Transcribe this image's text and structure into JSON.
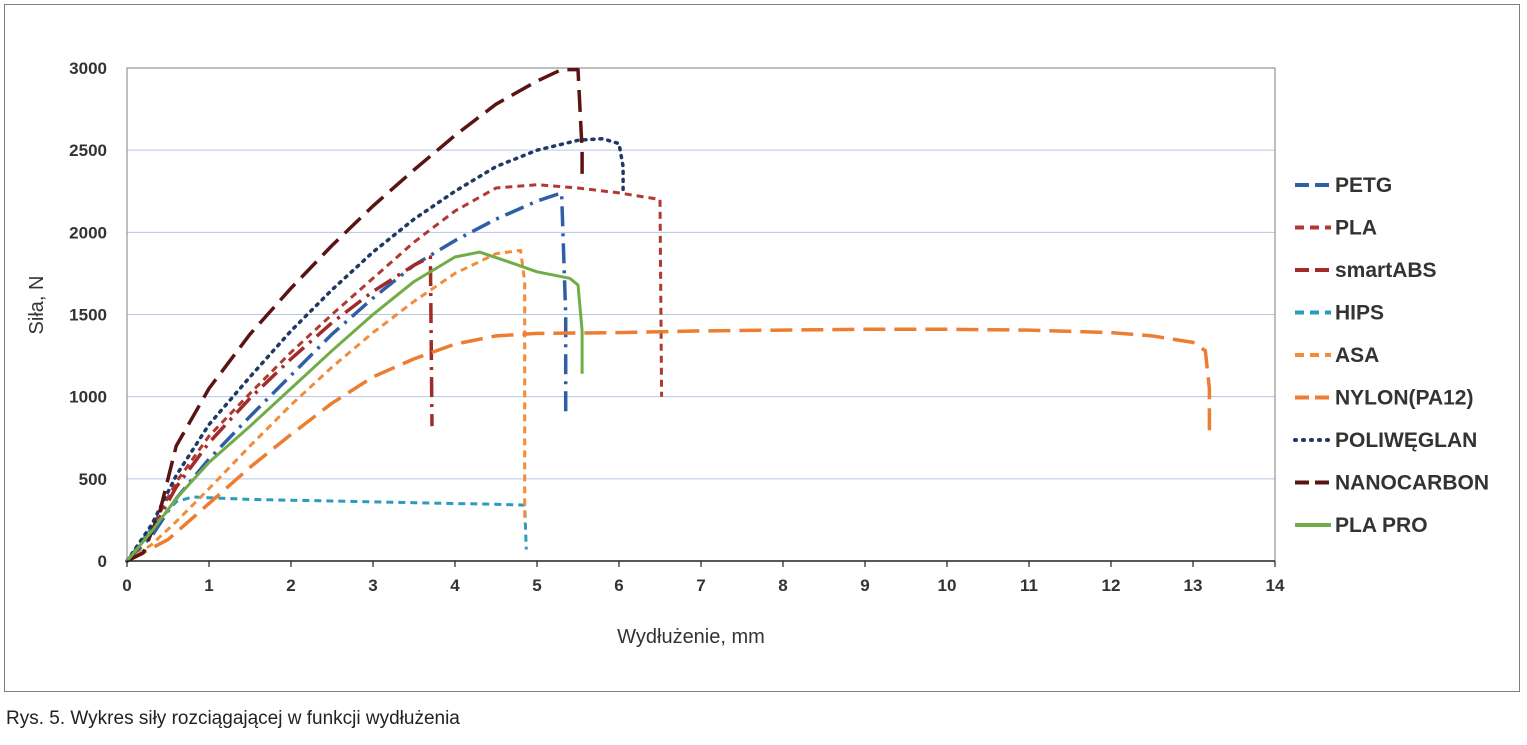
{
  "caption": "Rys. 5. Wykres siły rozciągającej w funkcji wydłużenia",
  "chart_data": {
    "type": "line",
    "title": "",
    "xlabel": "Wydłużenie, mm",
    "ylabel": "Siła, N",
    "xlim": [
      0,
      14
    ],
    "ylim": [
      0,
      3000
    ],
    "x_ticks": [
      "0",
      "1",
      "2",
      "3",
      "4",
      "5",
      "6",
      "7",
      "8",
      "9",
      "10",
      "11",
      "12",
      "13",
      "14"
    ],
    "y_ticks": [
      "0",
      "500",
      "1000",
      "1500",
      "2000",
      "2500",
      "3000"
    ],
    "grid": "horizontal",
    "legend_position": "right",
    "series": [
      {
        "name": "PETG",
        "color": "#2e5fa6",
        "dash": "dashdot",
        "x": [
          0,
          0.3,
          0.6,
          1.0,
          1.5,
          2.0,
          2.5,
          3.0,
          3.5,
          4.0,
          4.5,
          5.0,
          5.3,
          5.35,
          5.35
        ],
        "y": [
          0,
          150,
          380,
          620,
          880,
          1130,
          1380,
          1600,
          1800,
          1950,
          2080,
          2190,
          2240,
          1500,
          880
        ]
      },
      {
        "name": "PLA",
        "color": "#b03a32",
        "dash": "dash",
        "x": [
          0,
          0.3,
          0.6,
          1.0,
          1.5,
          2.0,
          2.5,
          3.0,
          3.5,
          4.0,
          4.5,
          5.0,
          5.5,
          6.0,
          6.5,
          6.52
        ],
        "y": [
          0,
          200,
          480,
          760,
          1020,
          1270,
          1500,
          1720,
          1940,
          2130,
          2270,
          2290,
          2270,
          2240,
          2200,
          1000
        ]
      },
      {
        "name": "smartABS",
        "color": "#a32a2a",
        "dash": "dashdot",
        "x": [
          0,
          0.3,
          0.6,
          1.0,
          1.5,
          2.0,
          2.5,
          3.0,
          3.5,
          3.7,
          3.72
        ],
        "y": [
          0,
          180,
          450,
          720,
          990,
          1230,
          1450,
          1640,
          1800,
          1850,
          820
        ]
      },
      {
        "name": "HIPS",
        "color": "#2e9abf",
        "dash": "dash",
        "x": [
          0,
          0.3,
          0.6,
          0.8,
          1.0,
          1.5,
          2.0,
          2.5,
          3.0,
          3.5,
          4.0,
          4.5,
          4.85,
          4.87
        ],
        "y": [
          0,
          200,
          360,
          390,
          385,
          375,
          370,
          365,
          360,
          355,
          350,
          345,
          340,
          70
        ]
      },
      {
        "name": "ASA",
        "color": "#f28c3a",
        "dash": "dash",
        "x": [
          0,
          0.3,
          0.6,
          1.0,
          1.5,
          2.0,
          2.5,
          3.0,
          3.5,
          4.0,
          4.5,
          4.8,
          4.85,
          4.85
        ],
        "y": [
          0,
          100,
          240,
          440,
          700,
          950,
          1180,
          1390,
          1580,
          1750,
          1870,
          1890,
          1700,
          230
        ]
      },
      {
        "name": "NYLON(PA12)",
        "color": "#ed7d31",
        "dash": "longdash",
        "x": [
          0,
          0.5,
          1.0,
          1.5,
          2.0,
          2.5,
          3.0,
          3.5,
          4.0,
          4.5,
          5.0,
          6.0,
          7.0,
          8.0,
          9.0,
          10.0,
          11.0,
          12.0,
          12.5,
          13.0,
          13.15,
          13.2,
          13.2
        ],
        "y": [
          0,
          130,
          350,
          570,
          770,
          960,
          1120,
          1230,
          1320,
          1370,
          1385,
          1390,
          1400,
          1405,
          1410,
          1410,
          1405,
          1390,
          1370,
          1330,
          1280,
          1050,
          780
        ]
      },
      {
        "name": "POLIWĘGLAN",
        "color": "#1f3864",
        "dash": "dot",
        "x": [
          0,
          0.3,
          0.6,
          1.0,
          1.5,
          2.0,
          2.5,
          3.0,
          3.5,
          4.0,
          4.5,
          5.0,
          5.5,
          5.8,
          6.0,
          6.05,
          6.05
        ],
        "y": [
          0,
          220,
          520,
          830,
          1120,
          1400,
          1650,
          1880,
          2080,
          2250,
          2400,
          2500,
          2560,
          2570,
          2540,
          2400,
          2260
        ]
      },
      {
        "name": "NANOCARBON",
        "color": "#5a1414",
        "dash": "longdash",
        "x": [
          0,
          0.2,
          0.4,
          0.6,
          1.0,
          1.5,
          2.0,
          2.5,
          3.0,
          3.5,
          4.0,
          4.5,
          5.0,
          5.3,
          5.5,
          5.55,
          5.55
        ],
        "y": [
          0,
          50,
          300,
          700,
          1050,
          1380,
          1660,
          1920,
          2160,
          2380,
          2590,
          2780,
          2920,
          2990,
          2990,
          2500,
          2300
        ]
      },
      {
        "name": "PLA PRO",
        "color": "#70ad47",
        "dash": "solid",
        "x": [
          0,
          0.3,
          0.6,
          1.0,
          1.5,
          2.0,
          2.5,
          3.0,
          3.5,
          4.0,
          4.3,
          4.6,
          5.0,
          5.4,
          5.5,
          5.55,
          5.55
        ],
        "y": [
          0,
          180,
          380,
          600,
          820,
          1050,
          1280,
          1500,
          1700,
          1850,
          1880,
          1830,
          1760,
          1720,
          1680,
          1400,
          1140
        ]
      }
    ]
  }
}
